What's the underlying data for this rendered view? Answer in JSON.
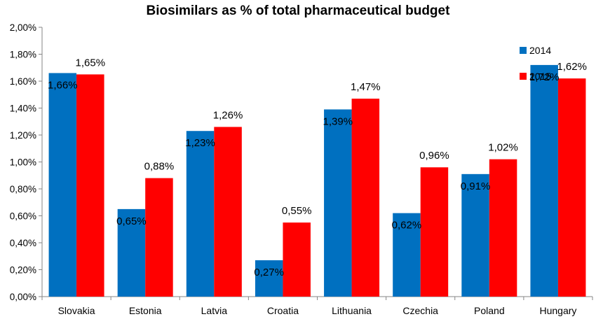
{
  "chart_data": {
    "type": "bar",
    "title": "Biosimilars as % of total pharmaceutical budget",
    "xlabel": "",
    "ylabel": "",
    "ylim": [
      0,
      2.0
    ],
    "yticks": [
      0,
      0.2,
      0.4,
      0.6,
      0.8,
      1.0,
      1.2,
      1.4,
      1.6,
      1.8,
      2.0
    ],
    "ytick_labels": [
      "0,00%",
      "0,20%",
      "0,40%",
      "0,60%",
      "0,80%",
      "1,00%",
      "1,20%",
      "1,40%",
      "1,60%",
      "1,80%",
      "2,00%"
    ],
    "grid": false,
    "legend_position": "top-right",
    "categories": [
      "Slovakia",
      "Estonia",
      "Latvia",
      "Croatia",
      "Lithuania",
      "Czechia",
      "Poland",
      "Hungary"
    ],
    "series": [
      {
        "name": "2014",
        "color": "#0070C0",
        "values": [
          1.66,
          0.65,
          1.23,
          0.27,
          1.39,
          0.62,
          0.91,
          1.72
        ],
        "labels": [
          "1,66%",
          "0,65%",
          "1,23%",
          "0,27%",
          "1,39%",
          "0,62%",
          "0,91%",
          "1,72%"
        ]
      },
      {
        "name": "2015",
        "color": "#FF0000",
        "values": [
          1.65,
          0.88,
          1.26,
          0.55,
          1.47,
          0.96,
          1.02,
          1.62
        ],
        "labels": [
          "1,65%",
          "0,88%",
          "1,26%",
          "0,55%",
          "1,47%",
          "0,96%",
          "1,02%",
          "1,62%"
        ]
      }
    ]
  }
}
